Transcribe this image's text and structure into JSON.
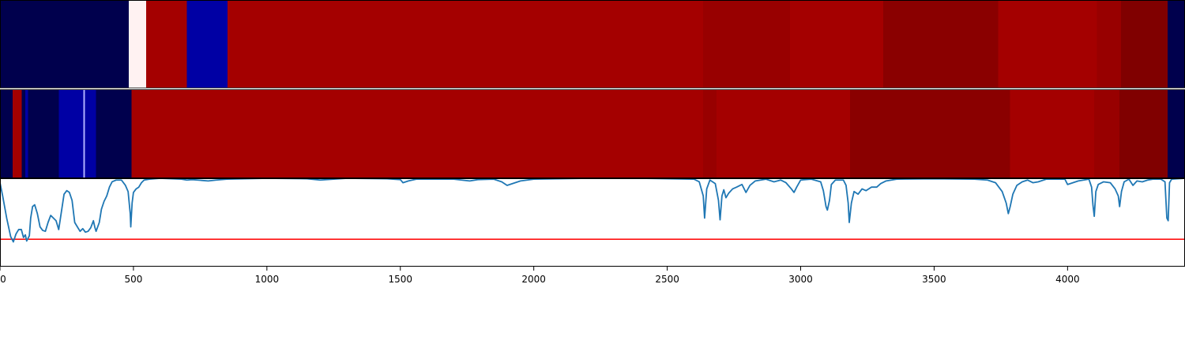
{
  "chart_data": {
    "type": "heatmap",
    "title": "",
    "xlabel": "",
    "ylabel": "",
    "xlim": [
      0,
      4440
    ],
    "grid": false,
    "x_ticks": [
      0,
      500,
      1000,
      1500,
      2000,
      2500,
      3000,
      3500,
      4000
    ],
    "x_tick_labels": [
      "0",
      "500",
      "1000",
      "1500",
      "2000",
      "2500",
      "3000",
      "3500",
      "4000"
    ],
    "colormap": "seismic",
    "panels": [
      {
        "name": "",
        "type": "heatmap",
        "segments": [
          {
            "start": 0,
            "end": 482,
            "color": "#00004d"
          },
          {
            "start": 482,
            "end": 548,
            "color": "#fff2f2"
          },
          {
            "start": 548,
            "end": 700,
            "color": "#a40000"
          },
          {
            "start": 700,
            "end": 852,
            "color": "#0000a4"
          },
          {
            "start": 852,
            "end": 2635,
            "color": "#a40000"
          },
          {
            "start": 2635,
            "end": 2960,
            "color": "#980000"
          },
          {
            "start": 2960,
            "end": 3310,
            "color": "#a40000"
          },
          {
            "start": 3310,
            "end": 3740,
            "color": "#8a0000"
          },
          {
            "start": 3740,
            "end": 4110,
            "color": "#a40000"
          },
          {
            "start": 4110,
            "end": 4200,
            "color": "#980000"
          },
          {
            "start": 4200,
            "end": 4375,
            "color": "#800000"
          },
          {
            "start": 4375,
            "end": 4440,
            "color": "#00004d"
          }
        ]
      },
      {
        "name": "",
        "type": "heatmap",
        "segments": [
          {
            "start": 0,
            "end": 48,
            "color": "#00004d"
          },
          {
            "start": 48,
            "end": 82,
            "color": "#a40000"
          },
          {
            "start": 82,
            "end": 95,
            "color": "#00004d"
          },
          {
            "start": 95,
            "end": 105,
            "color": "#0000a4"
          },
          {
            "start": 105,
            "end": 220,
            "color": "#00004d"
          },
          {
            "start": 220,
            "end": 312,
            "color": "#0000a4"
          },
          {
            "start": 312,
            "end": 318,
            "color": "#b0b0ff"
          },
          {
            "start": 318,
            "end": 360,
            "color": "#0000a4"
          },
          {
            "start": 360,
            "end": 493,
            "color": "#00004d"
          },
          {
            "start": 493,
            "end": 2635,
            "color": "#a40000"
          },
          {
            "start": 2635,
            "end": 2685,
            "color": "#980000"
          },
          {
            "start": 2685,
            "end": 3185,
            "color": "#a40000"
          },
          {
            "start": 3185,
            "end": 3785,
            "color": "#8a0000"
          },
          {
            "start": 3785,
            "end": 4100,
            "color": "#a40000"
          },
          {
            "start": 4100,
            "end": 4195,
            "color": "#980000"
          },
          {
            "start": 4195,
            "end": 4375,
            "color": "#800000"
          },
          {
            "start": 4375,
            "end": 4440,
            "color": "#00004d"
          }
        ]
      },
      {
        "name": "",
        "type": "line",
        "ylim": [
          0,
          1
        ],
        "threshold": 0.31,
        "threshold_color": "#ff0000",
        "line_color": "#1f77b4",
        "points": [
          [
            0,
            0.95
          ],
          [
            10,
            0.8
          ],
          [
            25,
            0.55
          ],
          [
            40,
            0.34
          ],
          [
            50,
            0.28
          ],
          [
            60,
            0.37
          ],
          [
            70,
            0.42
          ],
          [
            80,
            0.42
          ],
          [
            88,
            0.33
          ],
          [
            95,
            0.36
          ],
          [
            100,
            0.29
          ],
          [
            110,
            0.35
          ],
          [
            115,
            0.55
          ],
          [
            122,
            0.68
          ],
          [
            130,
            0.7
          ],
          [
            140,
            0.6
          ],
          [
            150,
            0.45
          ],
          [
            160,
            0.41
          ],
          [
            170,
            0.4
          ],
          [
            180,
            0.5
          ],
          [
            190,
            0.58
          ],
          [
            200,
            0.55
          ],
          [
            210,
            0.52
          ],
          [
            220,
            0.42
          ],
          [
            230,
            0.62
          ],
          [
            240,
            0.82
          ],
          [
            250,
            0.86
          ],
          [
            260,
            0.84
          ],
          [
            270,
            0.75
          ],
          [
            280,
            0.5
          ],
          [
            290,
            0.45
          ],
          [
            300,
            0.4
          ],
          [
            310,
            0.43
          ],
          [
            320,
            0.39
          ],
          [
            330,
            0.4
          ],
          [
            340,
            0.44
          ],
          [
            350,
            0.52
          ],
          [
            355,
            0.45
          ],
          [
            360,
            0.4
          ],
          [
            372,
            0.5
          ],
          [
            380,
            0.65
          ],
          [
            390,
            0.74
          ],
          [
            400,
            0.8
          ],
          [
            410,
            0.9
          ],
          [
            420,
            0.96
          ],
          [
            435,
            0.98
          ],
          [
            455,
            0.98
          ],
          [
            470,
            0.92
          ],
          [
            480,
            0.85
          ],
          [
            488,
            0.6
          ],
          [
            490,
            0.45
          ],
          [
            495,
            0.72
          ],
          [
            500,
            0.84
          ],
          [
            510,
            0.88
          ],
          [
            520,
            0.9
          ],
          [
            530,
            0.95
          ],
          [
            540,
            0.98
          ],
          [
            560,
            0.99
          ],
          [
            600,
            1.0
          ],
          [
            680,
            0.99
          ],
          [
            700,
            0.98
          ],
          [
            720,
            0.985
          ],
          [
            780,
            0.97
          ],
          [
            810,
            0.98
          ],
          [
            850,
            0.99
          ],
          [
            1000,
            1.0
          ],
          [
            1150,
            0.995
          ],
          [
            1200,
            0.98
          ],
          [
            1250,
            0.99
          ],
          [
            1300,
            1.0
          ],
          [
            1450,
            0.995
          ],
          [
            1500,
            0.985
          ],
          [
            1510,
            0.95
          ],
          [
            1530,
            0.97
          ],
          [
            1560,
            0.99
          ],
          [
            1700,
            0.99
          ],
          [
            1760,
            0.97
          ],
          [
            1790,
            0.985
          ],
          [
            1850,
            0.99
          ],
          [
            1880,
            0.96
          ],
          [
            1900,
            0.92
          ],
          [
            1920,
            0.94
          ],
          [
            1950,
            0.97
          ],
          [
            2000,
            0.99
          ],
          [
            2200,
            1.0
          ],
          [
            2400,
            1.0
          ],
          [
            2600,
            0.99
          ],
          [
            2620,
            0.96
          ],
          [
            2635,
            0.8
          ],
          [
            2640,
            0.55
          ],
          [
            2648,
            0.88
          ],
          [
            2660,
            0.98
          ],
          [
            2680,
            0.94
          ],
          [
            2692,
            0.75
          ],
          [
            2698,
            0.53
          ],
          [
            2705,
            0.8
          ],
          [
            2712,
            0.87
          ],
          [
            2720,
            0.78
          ],
          [
            2730,
            0.83
          ],
          [
            2745,
            0.88
          ],
          [
            2760,
            0.9
          ],
          [
            2780,
            0.93
          ],
          [
            2795,
            0.84
          ],
          [
            2810,
            0.92
          ],
          [
            2830,
            0.97
          ],
          [
            2870,
            0.99
          ],
          [
            2900,
            0.96
          ],
          [
            2925,
            0.98
          ],
          [
            2945,
            0.95
          ],
          [
            2965,
            0.88
          ],
          [
            2975,
            0.84
          ],
          [
            2985,
            0.9
          ],
          [
            3000,
            0.98
          ],
          [
            3040,
            0.99
          ],
          [
            3075,
            0.96
          ],
          [
            3085,
            0.86
          ],
          [
            3095,
            0.68
          ],
          [
            3100,
            0.64
          ],
          [
            3108,
            0.75
          ],
          [
            3115,
            0.93
          ],
          [
            3130,
            0.98
          ],
          [
            3160,
            0.98
          ],
          [
            3170,
            0.92
          ],
          [
            3178,
            0.72
          ],
          [
            3182,
            0.5
          ],
          [
            3190,
            0.72
          ],
          [
            3200,
            0.85
          ],
          [
            3215,
            0.82
          ],
          [
            3230,
            0.88
          ],
          [
            3245,
            0.86
          ],
          [
            3265,
            0.9
          ],
          [
            3285,
            0.9
          ],
          [
            3300,
            0.94
          ],
          [
            3320,
            0.97
          ],
          [
            3360,
            0.99
          ],
          [
            3500,
            0.995
          ],
          [
            3650,
            0.99
          ],
          [
            3700,
            0.98
          ],
          [
            3730,
            0.95
          ],
          [
            3755,
            0.85
          ],
          [
            3770,
            0.72
          ],
          [
            3778,
            0.6
          ],
          [
            3785,
            0.68
          ],
          [
            3795,
            0.82
          ],
          [
            3810,
            0.92
          ],
          [
            3830,
            0.96
          ],
          [
            3850,
            0.98
          ],
          [
            3870,
            0.95
          ],
          [
            3890,
            0.96
          ],
          [
            3920,
            0.99
          ],
          [
            3990,
            0.99
          ],
          [
            4000,
            0.93
          ],
          [
            4040,
            0.97
          ],
          [
            4080,
            0.99
          ],
          [
            4090,
            0.9
          ],
          [
            4095,
            0.7
          ],
          [
            4100,
            0.57
          ],
          [
            4106,
            0.85
          ],
          [
            4115,
            0.93
          ],
          [
            4135,
            0.96
          ],
          [
            4160,
            0.95
          ],
          [
            4178,
            0.88
          ],
          [
            4190,
            0.8
          ],
          [
            4195,
            0.68
          ],
          [
            4202,
            0.85
          ],
          [
            4212,
            0.96
          ],
          [
            4230,
            0.99
          ],
          [
            4245,
            0.92
          ],
          [
            4260,
            0.97
          ],
          [
            4280,
            0.96
          ],
          [
            4300,
            0.98
          ],
          [
            4320,
            0.99
          ],
          [
            4350,
            0.99
          ],
          [
            4365,
            0.96
          ],
          [
            4372,
            0.55
          ],
          [
            4377,
            0.52
          ],
          [
            4382,
            0.95
          ],
          [
            4390,
            0.99
          ],
          [
            4440,
            1.0
          ]
        ]
      }
    ]
  }
}
